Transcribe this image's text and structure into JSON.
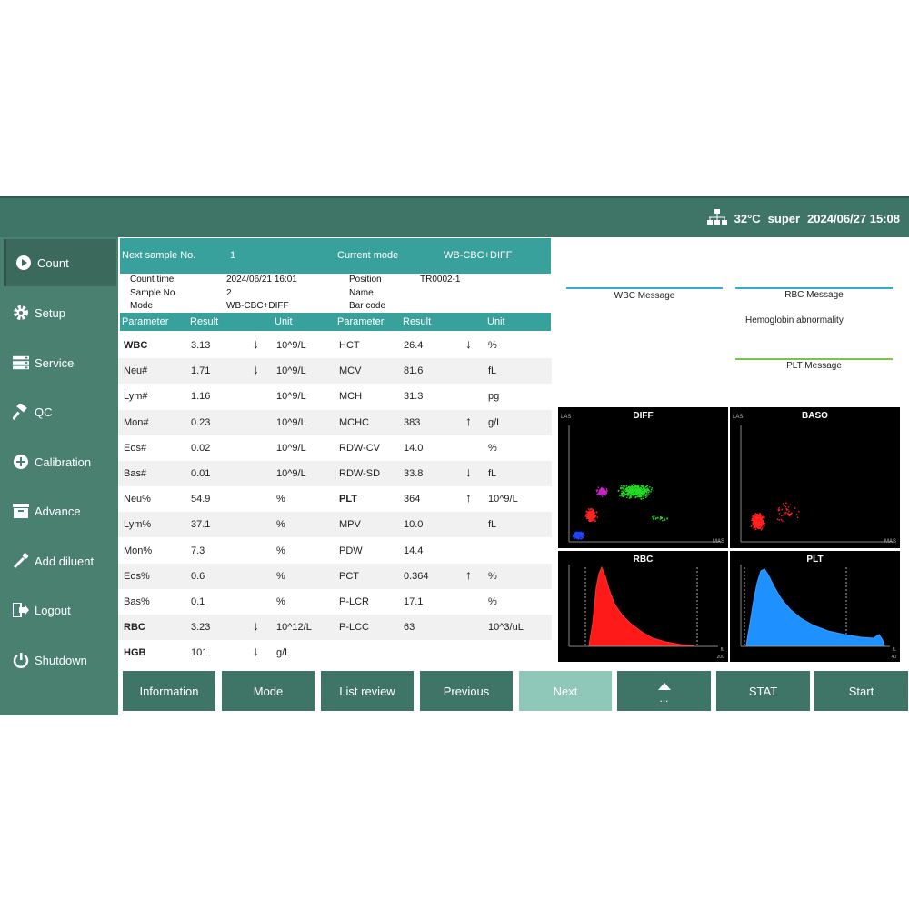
{
  "status": {
    "temperature": "32°C",
    "user": "super",
    "datetime": "2024/06/27 15:08"
  },
  "sidebar": {
    "items": [
      {
        "label": "Count",
        "icon": "play-circle-icon",
        "active": true
      },
      {
        "label": "Setup",
        "icon": "gear-icon"
      },
      {
        "label": "Service",
        "icon": "server-icon"
      },
      {
        "label": "QC",
        "icon": "hammer-icon"
      },
      {
        "label": "Calibration",
        "icon": "plus-circle-icon"
      },
      {
        "label": "Advance",
        "icon": "box-icon"
      },
      {
        "label": "Add diluent",
        "icon": "dropper-icon"
      },
      {
        "label": "Logout",
        "icon": "logout-icon"
      },
      {
        "label": "Shutdown",
        "icon": "power-icon"
      }
    ]
  },
  "header": {
    "next_sample_label": "Next sample No.",
    "next_sample_value": "1",
    "current_mode_label": "Current mode",
    "current_mode_value": "WB-CBC+DIFF"
  },
  "sample": {
    "count_time_label": "Count time",
    "count_time_value": "2024/06/21 16:01",
    "sample_no_label": "Sample No.",
    "sample_no_value": "2",
    "mode_label": "Mode",
    "mode_value": "WB-CBC+DIFF",
    "position_label": "Position",
    "position_value": "TR0002-1",
    "name_label": "Name",
    "name_value": "",
    "barcode_label": "Bar code",
    "barcode_value": ""
  },
  "table": {
    "headers": {
      "parameter": "Parameter",
      "result": "Result",
      "unit": "Unit"
    },
    "rows": [
      {
        "p1": "WBC",
        "r1": "3.13",
        "f1": "↓",
        "u1": "10^9/L",
        "p2": "HCT",
        "r2": "26.4",
        "f2": "↓",
        "u2": "%"
      },
      {
        "p1": "Neu#",
        "r1": "1.71",
        "f1": "↓",
        "u1": "10^9/L",
        "p2": "MCV",
        "r2": "81.6",
        "f2": "",
        "u2": "fL"
      },
      {
        "p1": "Lym#",
        "r1": "1.16",
        "f1": "",
        "u1": "10^9/L",
        "p2": "MCH",
        "r2": "31.3",
        "f2": "",
        "u2": "pg"
      },
      {
        "p1": "Mon#",
        "r1": "0.23",
        "f1": "",
        "u1": "10^9/L",
        "p2": "MCHC",
        "r2": "383",
        "f2": "↑",
        "u2": "g/L"
      },
      {
        "p1": "Eos#",
        "r1": "0.02",
        "f1": "",
        "u1": "10^9/L",
        "p2": "RDW-CV",
        "r2": "14.0",
        "f2": "",
        "u2": "%"
      },
      {
        "p1": "Bas#",
        "r1": "0.01",
        "f1": "",
        "u1": "10^9/L",
        "p2": "RDW-SD",
        "r2": "33.8",
        "f2": "↓",
        "u2": "fL"
      },
      {
        "p1": "Neu%",
        "r1": "54.9",
        "f1": "",
        "u1": "%",
        "p2": "PLT",
        "r2": "364",
        "f2": "↑",
        "u2": "10^9/L"
      },
      {
        "p1": "Lym%",
        "r1": "37.1",
        "f1": "",
        "u1": "%",
        "p2": "MPV",
        "r2": "10.0",
        "f2": "",
        "u2": "fL"
      },
      {
        "p1": "Mon%",
        "r1": "7.3",
        "f1": "",
        "u1": "%",
        "p2": "PDW",
        "r2": "14.4",
        "f2": "",
        "u2": ""
      },
      {
        "p1": "Eos%",
        "r1": "0.6",
        "f1": "",
        "u1": "%",
        "p2": "PCT",
        "r2": "0.364",
        "f2": "↑",
        "u2": "%"
      },
      {
        "p1": "Bas%",
        "r1": "0.1",
        "f1": "",
        "u1": "%",
        "p2": "P-LCR",
        "r2": "17.1",
        "f2": "",
        "u2": "%"
      },
      {
        "p1": "RBC",
        "r1": "3.23",
        "f1": "↓",
        "u1": "10^12/L",
        "p2": "P-LCC",
        "r2": "63",
        "f2": "",
        "u2": "10^3/uL"
      },
      {
        "p1": "HGB",
        "r1": "101",
        "f1": "↓",
        "u1": "g/L",
        "p2": "",
        "r2": "",
        "f2": "",
        "u2": ""
      }
    ]
  },
  "messages": {
    "wbc_title": "WBC Message",
    "rbc_title": "RBC Message",
    "rbc_text": "Hemoglobin abnormality",
    "plt_title": "PLT Message"
  },
  "plots": {
    "diff_title": "DIFF",
    "baso_title": "BASO",
    "rbc_title": "RBC",
    "plt_title": "PLT",
    "diff_yaxis": "LAS",
    "diff_xaxis": "MAS",
    "baso_yaxis": "LAS",
    "baso_xaxis": "MAS",
    "rbc_xaxis_end": "200",
    "rbc_unit": "fL",
    "plt_xaxis_end": "40",
    "plt_unit": "fL"
  },
  "buttons": {
    "information": "Information",
    "mode": "Mode",
    "list_review": "List review",
    "previous": "Previous",
    "next": "Next",
    "more": "...",
    "stat": "STAT",
    "start": "Start"
  }
}
